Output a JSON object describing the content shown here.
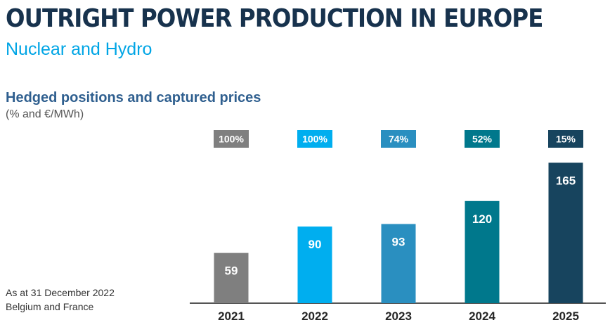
{
  "header": {
    "title": "OUTRIGHT POWER PRODUCTION IN EUROPE",
    "subtitle": "Nuclear and Hydro"
  },
  "section": {
    "heading": "Hedged positions and captured prices",
    "units": "(% and €/MWh)"
  },
  "footnotes": {
    "line1": "As at 31 December 2022",
    "line2": "Belgium and France"
  },
  "colors": {
    "title": "#17324d",
    "subtitle": "#00a5e5",
    "heading": "#2f5f8f",
    "axis": "#555555"
  },
  "chart_data": {
    "type": "bar",
    "categories": [
      "2021",
      "2022",
      "2023",
      "2024",
      "2025"
    ],
    "series": [
      {
        "values": [
          59,
          90,
          93,
          120,
          165
        ]
      }
    ],
    "hedged_percent": [
      "100%",
      "100%",
      "74%",
      "52%",
      "15%"
    ],
    "data_labels": [
      "59",
      "90",
      "93",
      "120",
      "165"
    ],
    "bar_colors": [
      "#7f7f7f",
      "#00aeef",
      "#2a8fc0",
      "#00788c",
      "#17445e"
    ],
    "ylim": [
      0,
      190
    ],
    "grid": false,
    "legend": "none"
  }
}
